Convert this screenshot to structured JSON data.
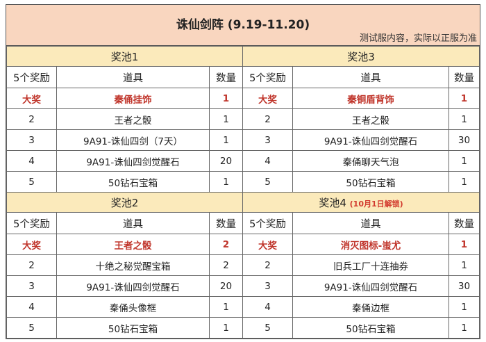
{
  "title": "诛仙剑阵 (9.19-11.20)",
  "note": "测试服内容，实际以正服为准",
  "headers": {
    "rank": "5个奖励",
    "item": "道具",
    "qty": "数量"
  },
  "blocks": [
    {
      "left": {
        "name": "奖池1",
        "note": "",
        "rows": [
          [
            "大奖",
            "秦俑挂饰",
            "1"
          ],
          [
            "2",
            "王者之骰",
            "1"
          ],
          [
            "3",
            "9A91-诛仙四剑（7天）",
            "1"
          ],
          [
            "4",
            "9A91-诛仙四剑觉醒石",
            "20"
          ],
          [
            "5",
            "50钻石宝箱",
            "1"
          ]
        ]
      },
      "right": {
        "name": "奖池3",
        "note": "",
        "rows": [
          [
            "大奖",
            "秦铜盾背饰",
            "1"
          ],
          [
            "2",
            "王者之骰",
            "1"
          ],
          [
            "3",
            "9A91-诛仙四剑觉醒石",
            "30"
          ],
          [
            "4",
            "秦俑聊天气泡",
            "1"
          ],
          [
            "5",
            "50钻石宝箱",
            "1"
          ]
        ]
      }
    },
    {
      "left": {
        "name": "奖池2",
        "note": "",
        "rows": [
          [
            "大奖",
            "王者之骰",
            "2"
          ],
          [
            "2",
            "十绝之秘觉醒宝箱",
            "2"
          ],
          [
            "3",
            "9A91-诛仙四剑觉醒石",
            "20"
          ],
          [
            "4",
            "秦俑头像框",
            "1"
          ],
          [
            "5",
            "50钻石宝箱",
            "1"
          ]
        ]
      },
      "right": {
        "name": "奖池4",
        "note": "(10月1日解锁)",
        "rows": [
          [
            "大奖",
            "消灭图标-蚩尤",
            "1"
          ],
          [
            "2",
            "旧兵工厂十连抽券",
            "1"
          ],
          [
            "3",
            "9A91-诛仙四剑觉醒石",
            "30"
          ],
          [
            "4",
            "秦俑边框",
            "1"
          ],
          [
            "5",
            "50钻石宝箱",
            "1"
          ]
        ]
      }
    }
  ]
}
